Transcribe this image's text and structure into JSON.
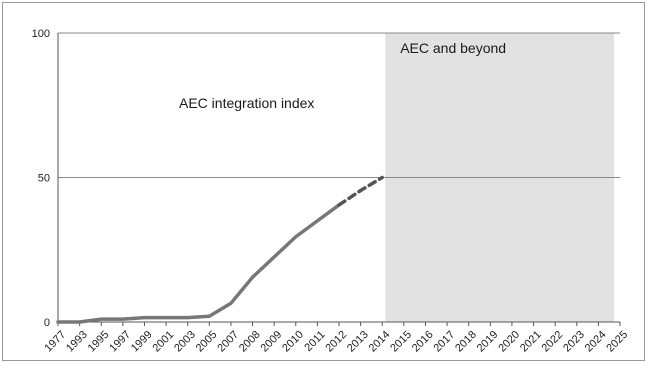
{
  "chart_data": {
    "type": "line",
    "title": "",
    "xlabel": "",
    "ylabel": "",
    "ylim": [
      0,
      100
    ],
    "y_ticks": [
      "0",
      "50",
      "100"
    ],
    "grid": "horizontal lines at y ticks",
    "categories": [
      "1977",
      "1993",
      "1995",
      "1997",
      "1999",
      "2001",
      "2003",
      "2005",
      "2007",
      "2008",
      "2009",
      "2010",
      "2011",
      "2012",
      "2013",
      "2014",
      "2015",
      "2016",
      "2017",
      "2018",
      "2019",
      "2020",
      "2021",
      "2022",
      "2023",
      "2024",
      "2025"
    ],
    "series": [
      {
        "name": "",
        "style": "solid",
        "color": "#777777",
        "x": [
          "1977",
          "1993",
          "1995",
          "1997",
          "1999",
          "2001",
          "2003",
          "2005",
          "2007",
          "2008",
          "2009",
          "2010",
          "2011",
          "2012"
        ],
        "values": [
          0,
          0,
          1,
          1,
          1.5,
          1.5,
          1.5,
          2,
          6.5,
          15.5,
          22.5,
          29.5,
          35,
          40.5
        ]
      },
      {
        "name": "",
        "style": "dashed",
        "color": "#555555",
        "x": [
          "2012",
          "2013",
          "2014"
        ],
        "values": [
          40.5,
          45.5,
          50
        ]
      }
    ],
    "annotations": [
      {
        "text": "AEC integration index"
      },
      {
        "text": "AEC and beyond"
      }
    ],
    "shaded_region": {
      "from": "2014",
      "to": "2025",
      "color": "#e2e2e2"
    }
  }
}
